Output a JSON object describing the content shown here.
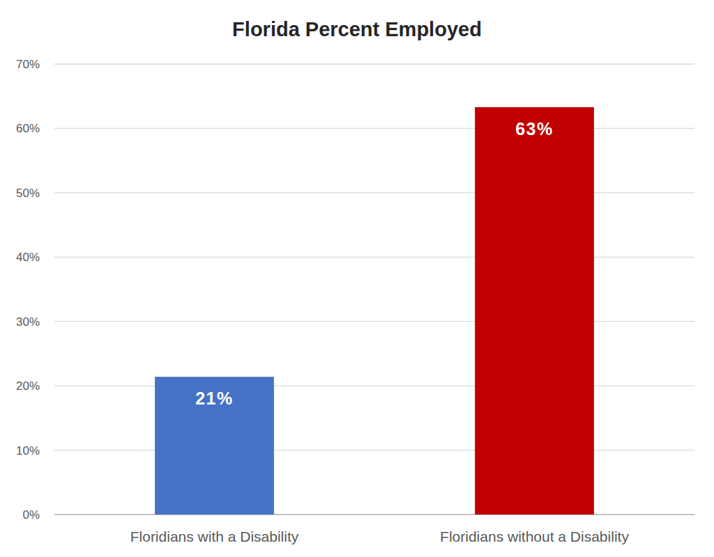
{
  "chart_data": {
    "type": "bar",
    "title": "Florida Percent Employed",
    "categories": [
      "Floridians with a Disability",
      "Floridians without a Disability"
    ],
    "values": [
      21.4,
      63.3
    ],
    "value_labels": [
      "21%",
      "63%"
    ],
    "colors": [
      "#4472c4",
      "#c00000"
    ],
    "ylim": [
      0,
      70
    ],
    "yticks": [
      {
        "value": 0,
        "label": "0%"
      },
      {
        "value": 10,
        "label": "10%"
      },
      {
        "value": 20,
        "label": "20%"
      },
      {
        "value": 30,
        "label": "30%"
      },
      {
        "value": 40,
        "label": "40%"
      },
      {
        "value": 50,
        "label": "50%"
      },
      {
        "value": 60,
        "label": "60%"
      },
      {
        "value": 70,
        "label": "70%"
      }
    ],
    "grid": true,
    "data_labels": true
  }
}
